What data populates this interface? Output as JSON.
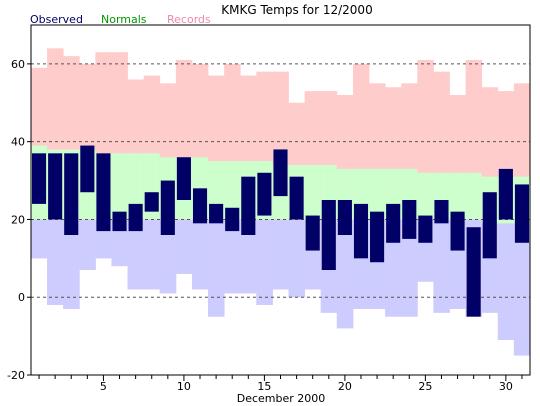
{
  "chart_data": {
    "type": "bar",
    "title": "KMKG Temps for 12/2000",
    "xlabel": "December 2000",
    "ylabel": "",
    "legend": [
      {
        "label": "Observed",
        "color": "#000066"
      },
      {
        "label": "Normals",
        "color": "#009900"
      },
      {
        "label": "Records",
        "color": "#ee88aa"
      }
    ],
    "legend_position": "top-left",
    "ylim": [
      -20,
      70
    ],
    "yticks": [
      -20,
      0,
      20,
      40,
      60
    ],
    "xticks": [
      5,
      10,
      15,
      20,
      25,
      30
    ],
    "gridlines_y": [
      0,
      20,
      40,
      60
    ],
    "days": [
      1,
      2,
      3,
      4,
      5,
      6,
      7,
      8,
      9,
      10,
      11,
      12,
      13,
      14,
      15,
      16,
      17,
      18,
      19,
      20,
      21,
      22,
      23,
      24,
      25,
      26,
      27,
      28,
      29,
      30,
      31
    ],
    "record_high": [
      59,
      64,
      62,
      60,
      63,
      63,
      56,
      57,
      55,
      61,
      60,
      57,
      60,
      57,
      58,
      58,
      50,
      53,
      53,
      52,
      60,
      55,
      54,
      55,
      61,
      58,
      52,
      61,
      54,
      53,
      55
    ],
    "record_low": [
      10,
      -2,
      -3,
      7,
      10,
      8,
      2,
      2,
      1,
      6,
      2,
      -5,
      1,
      1,
      -2,
      2,
      0,
      2,
      -4,
      -8,
      -3,
      -3,
      -5,
      -5,
      4,
      -4,
      -3,
      -5,
      -4,
      -11,
      -15
    ],
    "normal_high": [
      39,
      38,
      38,
      38,
      37,
      37,
      37,
      37,
      36,
      36,
      36,
      35,
      35,
      35,
      35,
      34,
      34,
      34,
      34,
      33,
      33,
      33,
      33,
      33,
      32,
      32,
      32,
      32,
      31,
      31,
      31
    ],
    "normal_low": [
      20,
      20,
      20,
      20,
      20,
      20,
      20,
      20,
      20,
      20,
      20,
      20,
      20,
      20,
      20,
      20,
      20,
      20,
      20,
      20,
      20,
      20,
      20,
      20,
      20,
      20,
      20,
      20,
      19,
      19,
      19
    ],
    "observed_high": [
      37,
      37,
      37,
      39,
      37,
      22,
      24,
      27,
      30,
      36,
      28,
      24,
      23,
      31,
      32,
      38,
      31,
      21,
      25,
      25,
      24,
      22,
      24,
      25,
      21,
      25,
      22,
      18,
      27,
      33,
      29
    ],
    "observed_low": [
      24,
      20,
      16,
      27,
      17,
      17,
      17,
      22,
      16,
      25,
      19,
      19,
      17,
      16,
      21,
      26,
      20,
      12,
      7,
      16,
      10,
      9,
      14,
      15,
      14,
      19,
      12,
      -5,
      10,
      20,
      14
    ]
  },
  "colors": {
    "record": "#ffcccc",
    "normal": "#ccffcc",
    "below_normal": "#ccccff",
    "observed": "#000066",
    "grid": "#555555"
  }
}
